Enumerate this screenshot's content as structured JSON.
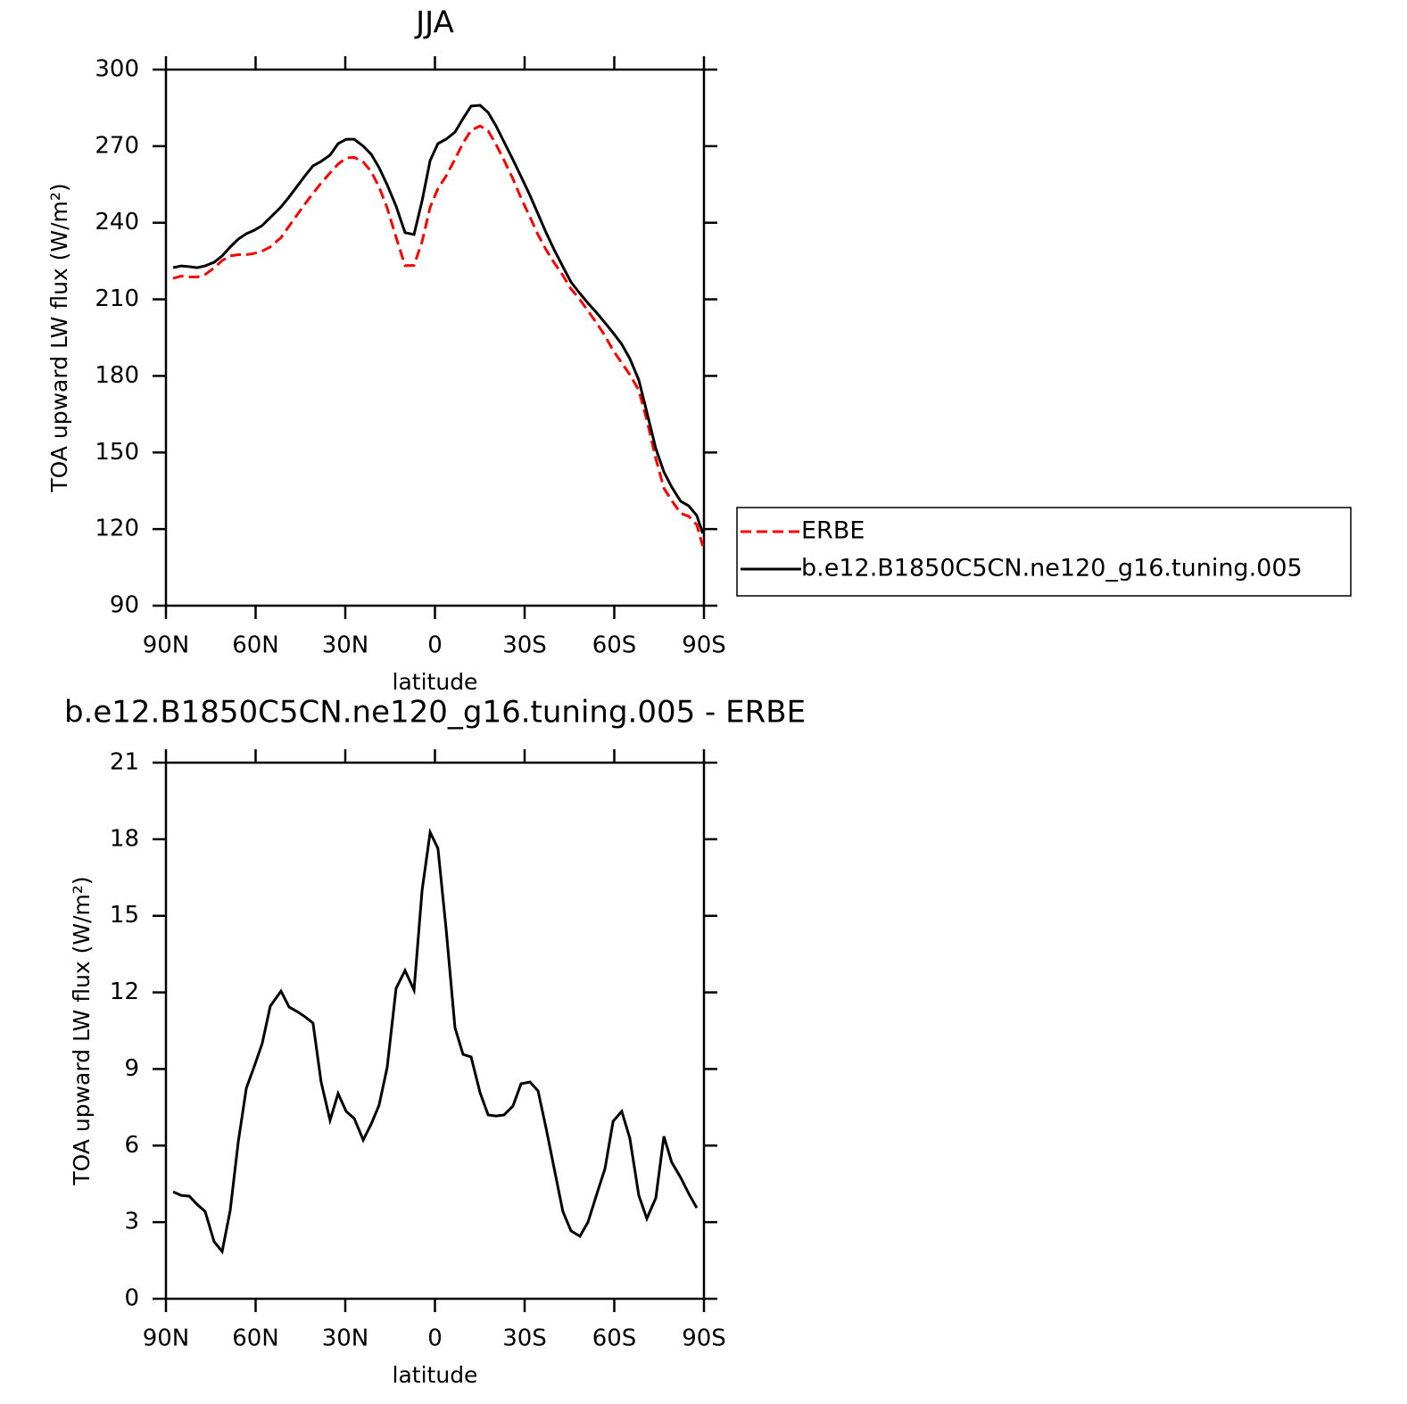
{
  "chart_data": [
    {
      "type": "line",
      "title": "JJA",
      "xlabel": "latitude",
      "ylabel": "TOA upward LW flux (W/m²)",
      "x": [
        87.6,
        84.9,
        82.2,
        79.6,
        76.9,
        73.9,
        71.2,
        68.5,
        65.8,
        63.1,
        60.4,
        57.8,
        55.1,
        51.5,
        48.8,
        46.1,
        43.4,
        40.8,
        38.1,
        35.1,
        32.4,
        29.7,
        27.0,
        24.0,
        21.3,
        18.7,
        16.0,
        13.0,
        10.0,
        7.0,
        4.3,
        1.6,
        -1.0,
        -3.7,
        -6.7,
        -9.4,
        -12.1,
        -15.1,
        -17.8,
        -20.4,
        -23.1,
        -26.1,
        -28.8,
        -31.8,
        -34.5,
        -37.2,
        -39.9,
        -42.8,
        -45.5,
        -48.5,
        -51.2,
        -54.2,
        -56.9,
        -59.6,
        -62.5,
        -65.2,
        -68.2,
        -70.9,
        -73.9,
        -76.6,
        -79.2,
        -82.2,
        -84.9,
        -87.6,
        -89.6
      ],
      "series": [
        {
          "name": "ERBE",
          "color": "#ff0000",
          "line_style": "dashed",
          "values": [
            218.2,
            219.1,
            218.8,
            218.7,
            219.7,
            222.3,
            225.2,
            227.0,
            227.5,
            227.5,
            228.0,
            228.9,
            230.5,
            234.2,
            238.7,
            243.1,
            247.5,
            251.5,
            255.5,
            259.5,
            263.0,
            265.4,
            265.6,
            263.8,
            260.0,
            254.0,
            245.9,
            234.3,
            223.2,
            223.3,
            232.6,
            246.1,
            253.4,
            258.2,
            264.9,
            271.2,
            276.2,
            277.9,
            276.0,
            270.8,
            264.5,
            257.2,
            249.7,
            242.2,
            235.3,
            229.4,
            224.3,
            219.4,
            214.1,
            209.9,
            205.5,
            200.5,
            195.7,
            190.0,
            185.1,
            180.5,
            174.4,
            162.7,
            147.6,
            136.0,
            131.2,
            126.2,
            125.0,
            121.7,
            113.4
          ]
        },
        {
          "name": "b.e12.B1850C5CN.ne120_g16.tuning.005",
          "color": "#000000",
          "line_style": "solid",
          "values": [
            222.4,
            223.1,
            222.8,
            222.4,
            223.1,
            224.5,
            227.0,
            230.5,
            233.6,
            235.7,
            237.1,
            238.9,
            242.0,
            246.2,
            250.1,
            254.3,
            258.5,
            262.3,
            264.0,
            266.5,
            271.0,
            272.7,
            272.7,
            270.0,
            266.8,
            261.6,
            254.9,
            246.5,
            236.1,
            235.4,
            248.6,
            264.4,
            271.0,
            272.7,
            275.5,
            280.8,
            285.7,
            286.0,
            283.2,
            278.0,
            271.7,
            264.7,
            258.1,
            250.7,
            243.4,
            236.1,
            229.4,
            222.8,
            216.8,
            212.3,
            208.5,
            204.6,
            200.8,
            196.9,
            192.4,
            186.8,
            178.4,
            165.8,
            151.5,
            142.4,
            136.5,
            130.9,
            129.1,
            125.3,
            118.3
          ]
        }
      ],
      "xlim": [
        90,
        -90
      ],
      "xticks": [
        {
          "value": 90,
          "label": "90N"
        },
        {
          "value": 60,
          "label": "60N"
        },
        {
          "value": 30,
          "label": "30N"
        },
        0,
        {
          "value": -30,
          "label": "30S"
        },
        {
          "value": -60,
          "label": "60S"
        },
        {
          "value": -90,
          "label": "90S"
        }
      ],
      "ylim": [
        90,
        300
      ],
      "yticks": [
        90,
        120,
        150,
        180,
        210,
        240,
        270,
        300
      ],
      "grid": false,
      "legend": "outside-right"
    },
    {
      "type": "line",
      "title": "b.e12.B1850C5CN.ne120_g16.tuning.005 - ERBE",
      "xlabel": "latitude",
      "ylabel": "TOA upward LW flux (W/m²)",
      "x": [
        87.6,
        84.9,
        82.2,
        79.6,
        76.9,
        73.9,
        71.2,
        68.5,
        65.8,
        63.1,
        60.4,
        57.8,
        55.1,
        51.5,
        48.8,
        46.1,
        43.4,
        40.8,
        38.1,
        35.1,
        32.4,
        29.7,
        27.0,
        24.0,
        21.3,
        18.7,
        16.0,
        13.0,
        10.0,
        7.0,
        4.3,
        1.6,
        -1.0,
        -3.7,
        -6.7,
        -9.4,
        -12.1,
        -15.1,
        -17.8,
        -20.4,
        -23.1,
        -26.1,
        -28.8,
        -31.8,
        -34.5,
        -37.2,
        -39.9,
        -42.8,
        -45.5,
        -48.5,
        -51.2,
        -54.2,
        -56.9,
        -59.6,
        -62.5,
        -65.2,
        -68.2,
        -70.9,
        -73.9,
        -76.6,
        -79.2,
        -82.2,
        -84.9,
        -87.6
      ],
      "values": [
        4.19,
        4.05,
        4.02,
        3.7,
        3.42,
        2.24,
        1.85,
        3.46,
        6.15,
        8.25,
        9.12,
        10.0,
        11.46,
        12.05,
        11.43,
        11.25,
        11.04,
        10.8,
        8.5,
        6.99,
        8.04,
        7.34,
        7.06,
        6.22,
        6.85,
        7.58,
        9.05,
        12.16,
        12.86,
        12.09,
        16.0,
        18.27,
        17.64,
        14.53,
        10.62,
        9.57,
        9.47,
        8.07,
        7.2,
        7.16,
        7.2,
        7.55,
        8.42,
        8.49,
        8.14,
        6.67,
        5.1,
        3.42,
        2.66,
        2.45,
        3.0,
        4.12,
        5.1,
        6.95,
        7.34,
        6.29,
        4.05,
        3.14,
        3.95,
        6.36,
        5.35,
        4.75,
        4.12,
        3.56
      ],
      "color": "#000000",
      "xlim": [
        90,
        -90
      ],
      "xticks": [
        {
          "value": 90,
          "label": "90N"
        },
        {
          "value": 60,
          "label": "60N"
        },
        {
          "value": 30,
          "label": "30N"
        },
        0,
        {
          "value": -30,
          "label": "30S"
        },
        {
          "value": -60,
          "label": "60S"
        },
        {
          "value": -90,
          "label": "90S"
        }
      ],
      "ylim": [
        0,
        21
      ],
      "yticks": [
        0,
        3,
        6,
        9,
        12,
        15,
        18,
        21
      ],
      "grid": false
    }
  ]
}
